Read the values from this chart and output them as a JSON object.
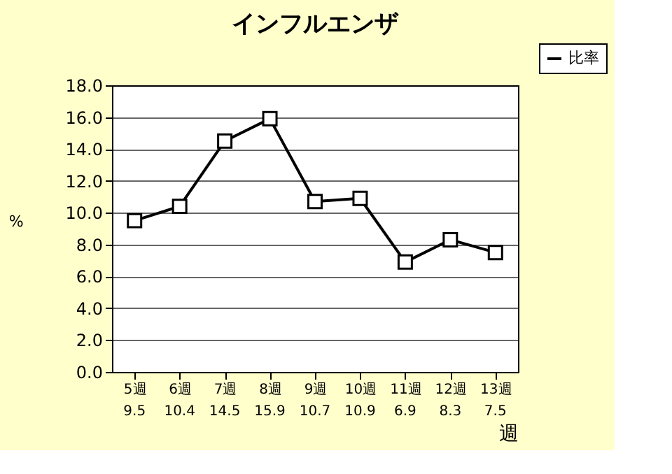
{
  "chart_data": {
    "type": "line",
    "title": "インフルエンザ",
    "xlabel": "週",
    "ylabel": "%",
    "categories": [
      "5週",
      "6週",
      "7週",
      "8週",
      "9週",
      "10週",
      "11週",
      "12週",
      "13週"
    ],
    "series": [
      {
        "name": "比率",
        "color": "#000000",
        "values": [
          9.5,
          10.4,
          14.5,
          15.9,
          10.7,
          10.9,
          6.9,
          8.3,
          7.5
        ]
      }
    ],
    "ylim": [
      0,
      18
    ],
    "yticks": [
      {
        "value": 0,
        "label": "0.0"
      },
      {
        "value": 2,
        "label": "2.0"
      },
      {
        "value": 4,
        "label": "4.0"
      },
      {
        "value": 6,
        "label": "6.0"
      },
      {
        "value": 8,
        "label": "8.0"
      },
      {
        "value": 10,
        "label": "10.0"
      },
      {
        "value": 12,
        "label": "12.0"
      },
      {
        "value": 14,
        "label": "14.0"
      },
      {
        "value": 16,
        "label": "16.0"
      },
      {
        "value": 18,
        "label": "18.0"
      }
    ],
    "grid": "y",
    "legend": "top right",
    "marker": "square",
    "line_style": "solid",
    "data_labels": true
  }
}
